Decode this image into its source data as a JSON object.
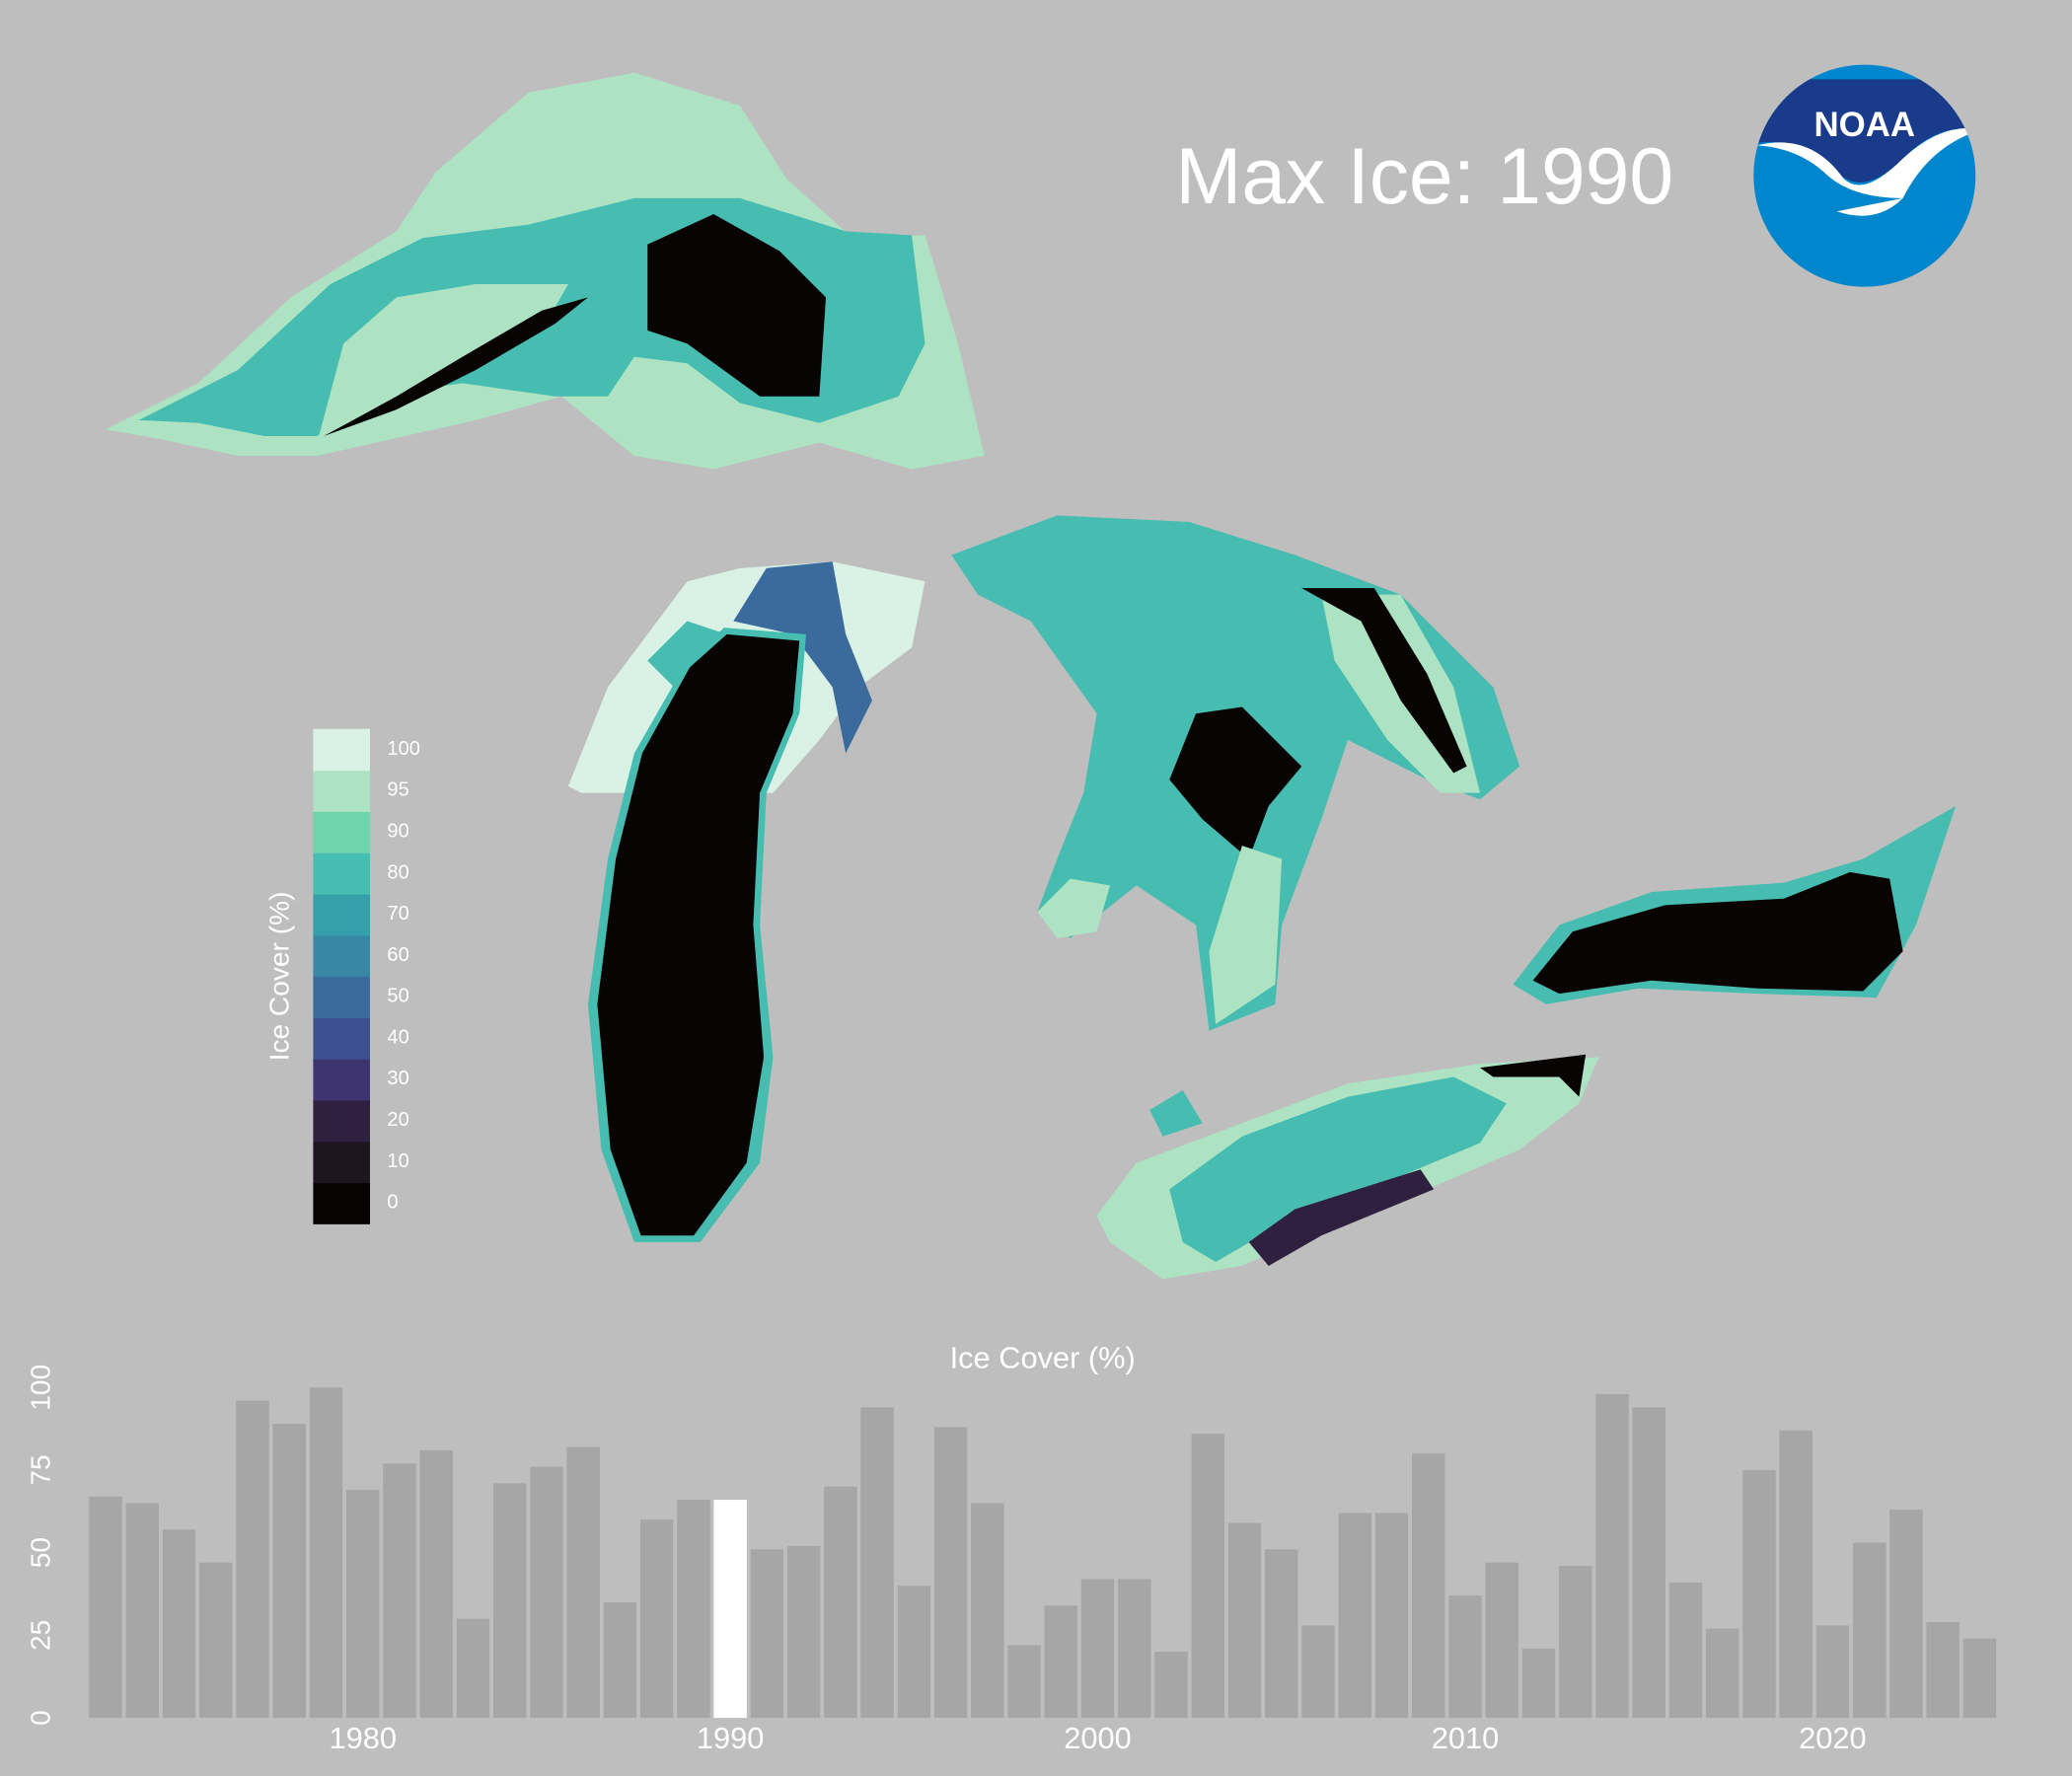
{
  "title": "Max Ice: 1990",
  "logo": "NOAA",
  "legend": {
    "title": "Ice Cover (%)",
    "ticks": [
      0,
      10,
      20,
      30,
      40,
      50,
      60,
      70,
      80,
      90,
      95,
      100
    ],
    "colors": [
      "#080404",
      "#1e1520",
      "#30203f",
      "#3e3570",
      "#3d4f8e",
      "#3a6b9c",
      "#3888a5",
      "#36a0aa",
      "#46bdb0",
      "#6fd4ac",
      "#ade3c3",
      "#d9f2e5"
    ]
  },
  "chart_data": {
    "type": "bar",
    "title": "Ice Cover (%)",
    "x": [
      1973,
      1974,
      1975,
      1976,
      1977,
      1978,
      1979,
      1980,
      1981,
      1982,
      1983,
      1984,
      1985,
      1986,
      1987,
      1988,
      1989,
      1990,
      1991,
      1992,
      1993,
      1994,
      1995,
      1996,
      1997,
      1998,
      1999,
      2000,
      2001,
      2002,
      2003,
      2004,
      2005,
      2006,
      2007,
      2008,
      2009,
      2010,
      2011,
      2012,
      2013,
      2014,
      2015,
      2016,
      2017,
      2018,
      2019,
      2020,
      2021,
      2022,
      2023,
      2024
    ],
    "values": [
      67,
      65,
      57,
      47,
      96,
      89,
      100,
      69,
      77,
      81,
      30,
      71,
      76,
      82,
      35,
      60,
      66,
      66,
      51,
      52,
      70,
      94,
      40,
      88,
      65,
      22,
      34,
      42,
      42,
      20,
      86,
      59,
      51,
      28,
      62,
      62,
      80,
      37,
      47,
      21,
      46,
      98,
      94,
      41,
      27,
      75,
      87,
      28,
      53,
      63,
      29,
      24
    ],
    "color": "#a6a6a6",
    "highlight": {
      "x": 1990,
      "color": "#ffffff"
    },
    "xlim": [
      1972.5,
      2024.5
    ],
    "xticks": [
      1980,
      1990,
      2000,
      2010,
      2020
    ],
    "ylim": [
      0,
      100
    ],
    "yticks": [
      0,
      25,
      50,
      75,
      100
    ],
    "grid": false
  }
}
